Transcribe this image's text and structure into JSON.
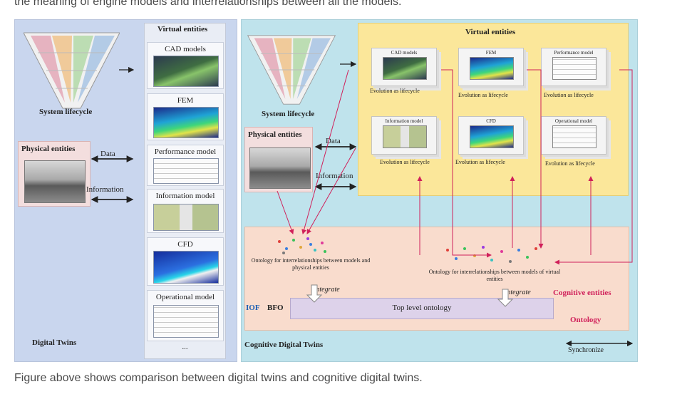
{
  "article": {
    "top_text": "the meaning of engine models and interrelationships between all the models.",
    "caption": "Figure above shows comparison between digital twins and cognitive digital twins."
  },
  "figure": {
    "left": {
      "virtual_entities_title": "Virtual entities",
      "system_lifecycle": "System lifecycle",
      "physical_entities": "Physical entities",
      "data_label": "Data",
      "information_label": "Information",
      "footer": "Digital Twins",
      "models": [
        {
          "label": "CAD models",
          "icon": "ship-cad-thumbnail"
        },
        {
          "label": "FEM",
          "icon": "fem-mesh-thumbnail"
        },
        {
          "label": "Performance model",
          "icon": "performance-chart-thumbnail"
        },
        {
          "label": "Information model",
          "icon": "information-thumbnail"
        },
        {
          "label": "CFD",
          "icon": "cfd-thumbnail"
        },
        {
          "label": "Operational model",
          "icon": "operational-chart-thumbnail"
        },
        {
          "label": "...",
          "icon": ""
        }
      ]
    },
    "right": {
      "virtual_entities_title": "Virtual entities",
      "system_lifecycle": "System lifecycle",
      "physical_entities": "Physical entities",
      "data_label": "Data",
      "information_label": "Information",
      "models": [
        {
          "label": "CAD models",
          "evolution": "Evolution as lifecycle"
        },
        {
          "label": "FEM",
          "evolution": "Evolution as lifecycle"
        },
        {
          "label": "Performance model",
          "evolution": "Evolution as lifecycle"
        },
        {
          "label": "Information model",
          "evolution": "Evolution as lifecycle"
        },
        {
          "label": "CFD",
          "evolution": "Evolution as lifecycle"
        },
        {
          "label": "Operational model",
          "evolution": "Evolution as lifecycle"
        }
      ],
      "ontology_left": "Ontology for interrelationships between models and physical entities",
      "ontology_right": "Ontology for interrelationships between models of virtual entities",
      "integrate_left": "Integrate",
      "integrate_right": "Integrate",
      "cognitive_entities": "Cognitive entities",
      "iof": "IOF",
      "bfo": "BFO",
      "top_level_ontology": "Top level ontology",
      "ontology": "Ontology",
      "footer": "Cognitive Digital Twins",
      "synchronize": "Synchronize"
    }
  }
}
